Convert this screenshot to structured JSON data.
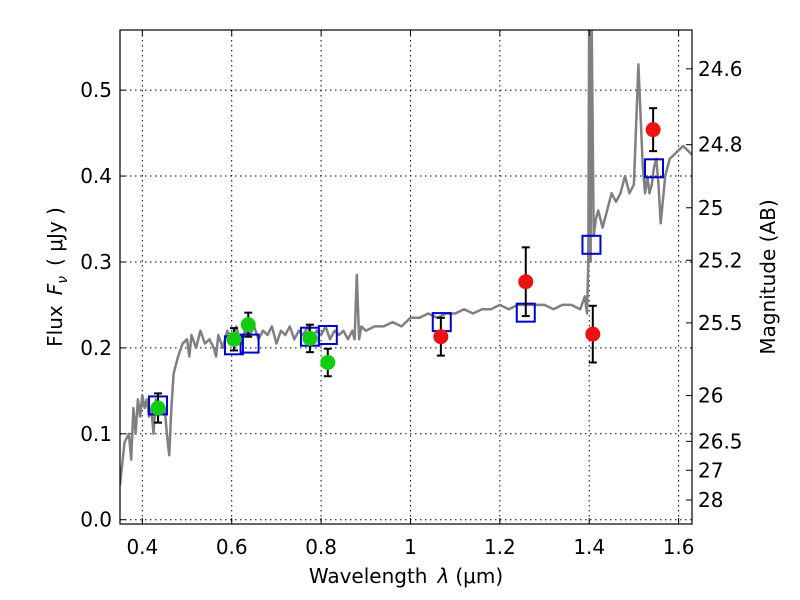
{
  "chart_data": {
    "type": "scatter",
    "xlabel": "Wavelength  λ (μm)",
    "xlabel_main": "Wavelength",
    "xlabel_lambda": "λ",
    "xlabel_unit": "(μm)",
    "ylabel_flux": "Flux",
    "ylabel_F": "F",
    "ylabel_nu": "ν",
    "ylabel_unit": "( μJy )",
    "ylabel_right": "Magnitude (AB)",
    "xlim": [
      0.35,
      1.63
    ],
    "ylim": [
      -0.005,
      0.57
    ],
    "x_ticks": [
      0.4,
      0.6,
      0.8,
      1.0,
      1.2,
      1.4,
      1.6
    ],
    "x_tick_labels": [
      "0.4",
      "0.6",
      "0.8",
      "1",
      "1.2",
      "1.4",
      "1.6"
    ],
    "y_ticks": [
      0.0,
      0.1,
      0.2,
      0.3,
      0.4,
      0.5
    ],
    "y_tick_labels": [
      "0.0",
      "0.1",
      "0.2",
      "0.3",
      "0.4",
      "0.5"
    ],
    "right_ticks": [
      {
        "mag": 24.6,
        "label": "24.6"
      },
      {
        "mag": 24.8,
        "label": "24.8"
      },
      {
        "mag": 25.0,
        "label": "25"
      },
      {
        "mag": 25.2,
        "label": "25.2"
      },
      {
        "mag": 25.5,
        "label": "25.5"
      },
      {
        "mag": 26.0,
        "label": "26"
      },
      {
        "mag": 26.5,
        "label": "26.5"
      },
      {
        "mag": 27.0,
        "label": "27"
      },
      {
        "mag": 28.0,
        "label": "28"
      }
    ],
    "grid": true,
    "colors": {
      "model": "#808080",
      "green": "#11cc11",
      "red": "#ee1111",
      "blue": "#0000cc"
    },
    "model_spectrum": {
      "x": [
        0.35,
        0.36,
        0.37,
        0.375,
        0.38,
        0.385,
        0.39,
        0.395,
        0.4,
        0.405,
        0.41,
        0.415,
        0.42,
        0.425,
        0.43,
        0.435,
        0.44,
        0.445,
        0.45,
        0.455,
        0.46,
        0.465,
        0.47,
        0.48,
        0.49,
        0.5,
        0.505,
        0.51,
        0.52,
        0.53,
        0.54,
        0.55,
        0.56,
        0.565,
        0.57,
        0.58,
        0.59,
        0.6,
        0.61,
        0.62,
        0.63,
        0.64,
        0.65,
        0.66,
        0.67,
        0.68,
        0.69,
        0.7,
        0.71,
        0.72,
        0.73,
        0.74,
        0.75,
        0.76,
        0.77,
        0.78,
        0.79,
        0.8,
        0.81,
        0.82,
        0.83,
        0.84,
        0.85,
        0.86,
        0.87,
        0.875,
        0.88,
        0.885,
        0.89,
        0.9,
        0.92,
        0.94,
        0.96,
        0.98,
        1.0,
        1.02,
        1.04,
        1.06,
        1.08,
        1.1,
        1.12,
        1.14,
        1.16,
        1.18,
        1.2,
        1.22,
        1.24,
        1.26,
        1.28,
        1.3,
        1.32,
        1.34,
        1.36,
        1.38,
        1.39,
        1.395,
        1.398,
        1.4,
        1.403,
        1.405,
        1.41,
        1.415,
        1.42,
        1.43,
        1.44,
        1.45,
        1.46,
        1.47,
        1.48,
        1.49,
        1.5,
        1.51,
        1.52,
        1.525,
        1.53,
        1.535,
        1.54,
        1.545,
        1.55,
        1.555,
        1.56,
        1.57,
        1.58,
        1.59,
        1.6,
        1.61,
        1.62,
        1.63
      ],
      "y": [
        0.04,
        0.09,
        0.1,
        0.07,
        0.13,
        0.1,
        0.14,
        0.12,
        0.145,
        0.13,
        0.14,
        0.12,
        0.13,
        0.1,
        0.14,
        0.12,
        0.13,
        0.135,
        0.13,
        0.1,
        0.075,
        0.13,
        0.17,
        0.19,
        0.205,
        0.21,
        0.19,
        0.215,
        0.2,
        0.22,
        0.205,
        0.21,
        0.2,
        0.19,
        0.215,
        0.2,
        0.22,
        0.21,
        0.225,
        0.205,
        0.22,
        0.215,
        0.225,
        0.21,
        0.22,
        0.215,
        0.225,
        0.205,
        0.22,
        0.215,
        0.225,
        0.21,
        0.22,
        0.215,
        0.225,
        0.21,
        0.22,
        0.215,
        0.225,
        0.21,
        0.22,
        0.215,
        0.22,
        0.21,
        0.22,
        0.21,
        0.285,
        0.21,
        0.225,
        0.22,
        0.225,
        0.225,
        0.23,
        0.225,
        0.235,
        0.235,
        0.24,
        0.235,
        0.24,
        0.24,
        0.245,
        0.24,
        0.245,
        0.245,
        0.25,
        0.245,
        0.25,
        0.25,
        0.25,
        0.25,
        0.245,
        0.25,
        0.25,
        0.245,
        0.26,
        0.24,
        0.3,
        0.6,
        0.3,
        0.6,
        0.33,
        0.35,
        0.36,
        0.34,
        0.36,
        0.38,
        0.37,
        0.38,
        0.4,
        0.38,
        0.39,
        0.53,
        0.41,
        0.38,
        0.4,
        0.38,
        0.39,
        0.41,
        0.42,
        0.39,
        0.345,
        0.4,
        0.42,
        0.425,
        0.43,
        0.435,
        0.43,
        0.425
      ]
    },
    "green_points": [
      {
        "x": 0.435,
        "y": 0.13,
        "err": 0.017
      },
      {
        "x": 0.605,
        "y": 0.21,
        "err": 0.013
      },
      {
        "x": 0.637,
        "y": 0.227,
        "err": 0.014
      },
      {
        "x": 0.775,
        "y": 0.211,
        "err": 0.016
      },
      {
        "x": 0.815,
        "y": 0.183,
        "err": 0.016
      }
    ],
    "red_points": [
      {
        "x": 1.068,
        "y": 0.213,
        "err": 0.022
      },
      {
        "x": 1.258,
        "y": 0.277,
        "err": 0.04
      },
      {
        "x": 1.408,
        "y": 0.216,
        "err": 0.033
      },
      {
        "x": 1.543,
        "y": 0.454,
        "err": 0.025
      }
    ],
    "blue_squares": [
      {
        "x": 0.435,
        "y": 0.133
      },
      {
        "x": 0.605,
        "y": 0.203
      },
      {
        "x": 0.64,
        "y": 0.205
      },
      {
        "x": 0.775,
        "y": 0.213
      },
      {
        "x": 0.815,
        "y": 0.215
      },
      {
        "x": 1.07,
        "y": 0.23
      },
      {
        "x": 1.258,
        "y": 0.241
      },
      {
        "x": 1.405,
        "y": 0.32
      },
      {
        "x": 1.545,
        "y": 0.409
      }
    ]
  }
}
